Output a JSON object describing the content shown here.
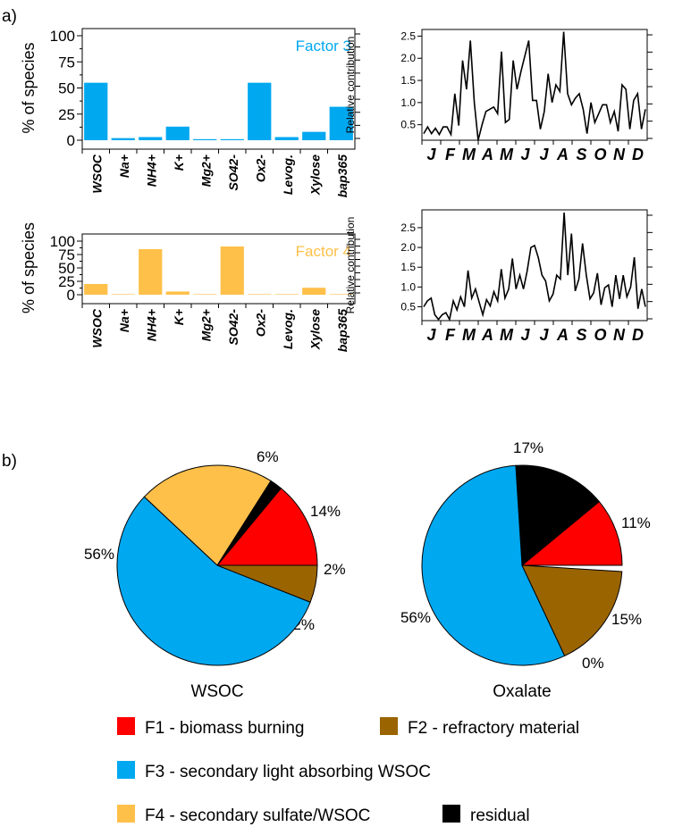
{
  "panel_labels": {
    "a": "a)",
    "b": "b)"
  },
  "colors": {
    "factor3": "#00a8f0",
    "factor4": "#ffc04a",
    "f1": "#ff0000",
    "f2": "#9a6400",
    "f3": "#00a8f0",
    "f4": "#ffc04a",
    "residual": "#000000"
  },
  "chart_data": [
    {
      "type": "bar",
      "panel": "a-factor3-profile",
      "title": "Factor 3",
      "ylabel": "% of species",
      "categories": [
        "WSOC",
        "Na+",
        "NH4+",
        "K+",
        "Mg2+",
        "SO42-",
        "Ox2-",
        "Levog.",
        "Xylose",
        "bap365"
      ],
      "values": [
        55,
        2,
        3,
        13,
        1,
        1,
        55,
        3,
        8,
        32
      ],
      "ylim": [
        0,
        100
      ],
      "yticks": [
        0,
        25,
        50,
        75,
        100
      ]
    },
    {
      "type": "line",
      "panel": "a-factor3-time",
      "ylabel": "Relative contribution",
      "xticks": [
        "J",
        "F",
        "M",
        "A",
        "M",
        "J",
        "J",
        "A",
        "S",
        "O",
        "N",
        "D"
      ],
      "yticks": [
        "0.5",
        "1.0",
        "1.5",
        "2.0",
        "2.5"
      ],
      "ylim": [
        0.15,
        2.65
      ],
      "values": [
        0.3,
        0.45,
        0.3,
        0.42,
        0.28,
        0.45,
        0.45,
        0.28,
        1.2,
        0.48,
        1.95,
        1.3,
        2.4,
        1.0,
        0.15,
        0.5,
        0.8,
        0.85,
        0.9,
        0.75,
        2.15,
        0.55,
        0.62,
        1.95,
        1.3,
        1.7,
        2.05,
        2.4,
        1.05,
        1.05,
        0.4,
        0.8,
        1.65,
        1.0,
        1.4,
        1.25,
        2.6,
        1.2,
        0.95,
        1.1,
        1.2,
        0.85,
        0.3,
        1.0,
        0.55,
        0.75,
        0.95,
        0.95,
        0.55,
        0.8,
        0.35,
        1.4,
        1.3,
        0.4,
        1.05,
        1.2,
        0.4,
        0.85
      ]
    },
    {
      "type": "bar",
      "panel": "a-factor4-profile",
      "title": "Factor 4",
      "ylabel": "% of species",
      "categories": [
        "WSOC",
        "Na+",
        "NH4+",
        "K+",
        "Mg2+",
        "SO42-",
        "Ox2-",
        "Levog.",
        "Xylose",
        "bap365"
      ],
      "values": [
        20,
        1,
        85,
        6,
        1,
        90,
        1,
        1,
        13,
        1
      ],
      "ylim": [
        0,
        100
      ],
      "yticks": [
        0,
        25,
        50,
        75,
        100
      ]
    },
    {
      "type": "line",
      "panel": "a-factor4-time",
      "ylabel": "Relative contribution",
      "xticks": [
        "J",
        "F",
        "M",
        "A",
        "M",
        "J",
        "J",
        "A",
        "S",
        "O",
        "N",
        "D"
      ],
      "yticks": [
        "0.5",
        "1.0",
        "1.5",
        "2.0",
        "2.5"
      ],
      "ylim": [
        0.15,
        2.95
      ],
      "values": [
        0.5,
        0.65,
        0.72,
        0.3,
        0.18,
        0.3,
        0.35,
        0.18,
        0.65,
        0.42,
        0.75,
        0.5,
        1.42,
        0.72,
        0.95,
        0.62,
        0.3,
        0.68,
        0.52,
        0.88,
        0.65,
        1.45,
        0.72,
        0.95,
        1.72,
        0.95,
        1.3,
        0.95,
        1.4,
        2.0,
        2.05,
        1.75,
        1.3,
        1.15,
        0.65,
        0.82,
        1.3,
        1.2,
        2.88,
        1.3,
        2.35,
        0.9,
        1.2,
        2.1,
        1.3,
        0.7,
        0.85,
        1.35,
        0.55,
        0.98,
        1.05,
        0.5,
        1.3,
        0.7,
        1.3,
        0.75,
        1.0,
        1.75,
        0.45,
        0.95,
        0.5
      ]
    },
    {
      "type": "pie",
      "panel": "b-wsoc",
      "label": "WSOC",
      "slices": [
        {
          "factor": "F1",
          "value": 14,
          "label": "14%"
        },
        {
          "factor": "residual",
          "value": 2,
          "label": "2%"
        },
        {
          "factor": "F4",
          "value": 22,
          "label": "22%"
        },
        {
          "factor": "F3",
          "value": 56,
          "label": "56%"
        },
        {
          "factor": "F2",
          "value": 6,
          "label": "6%"
        }
      ]
    },
    {
      "type": "pie",
      "panel": "b-oxalate",
      "label": "Oxalate",
      "slices": [
        {
          "factor": "F1",
          "value": 11,
          "label": "11%"
        },
        {
          "factor": "F4",
          "value": 0,
          "label": "0%"
        },
        {
          "factor": "residual",
          "value": 15,
          "label": "15%"
        },
        {
          "factor": "F3",
          "value": 56,
          "label": "56%"
        },
        {
          "factor": "F2",
          "value": 17,
          "label": "17%"
        }
      ]
    }
  ],
  "legend": [
    {
      "key": "F1",
      "label": "F1 - biomass burning"
    },
    {
      "key": "F2",
      "label": "F2 - refractory material"
    },
    {
      "key": "F3",
      "label": "F3 - secondary light absorbing WSOC"
    },
    {
      "key": "F4",
      "label": "F4 - secondary sulfate/WSOC"
    },
    {
      "key": "residual",
      "label": "residual"
    }
  ]
}
